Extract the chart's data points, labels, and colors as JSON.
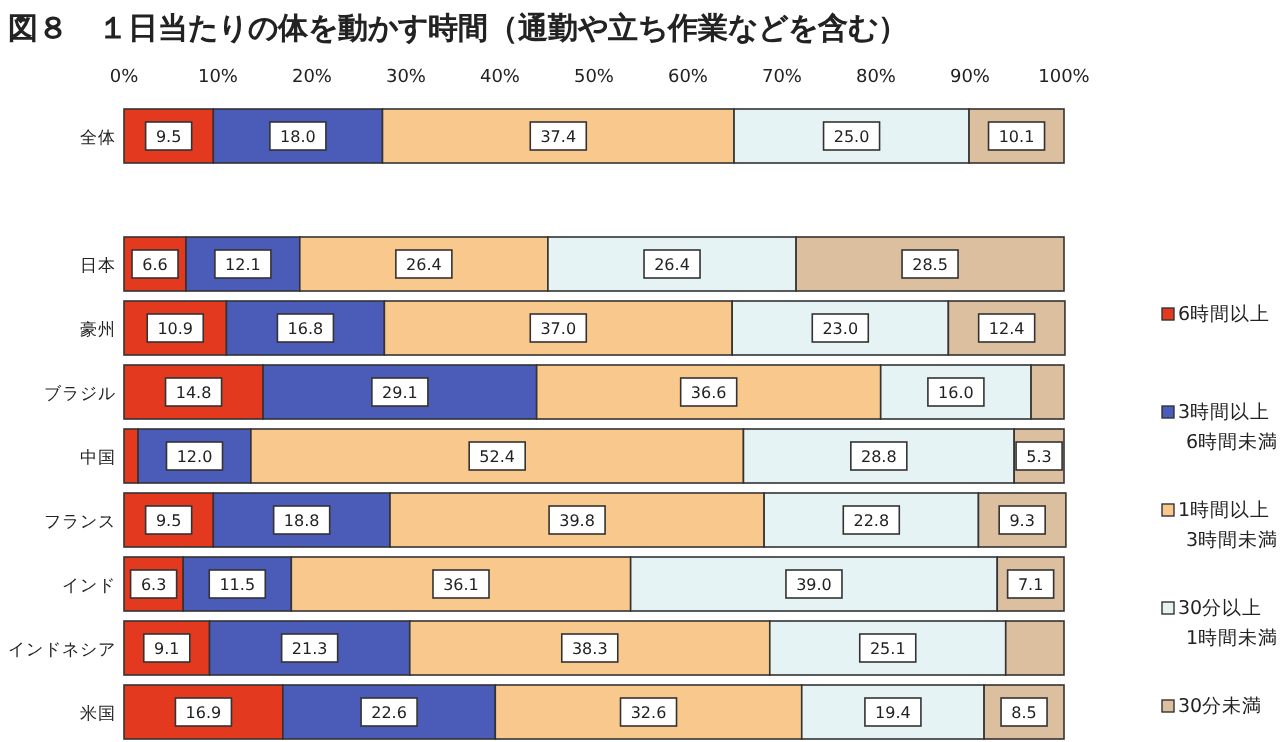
{
  "chart_data": {
    "type": "bar",
    "orientation": "horizontal",
    "stacked": true,
    "title": "図８　１日当たりの体を動かす時間（通勤や立ち作業などを含む）",
    "categories": [
      "全体",
      null,
      "日本",
      "豪州",
      "ブラジル",
      "中国",
      "フランス",
      "インド",
      "インドネシア",
      "米国"
    ],
    "xlim": [
      0,
      100
    ],
    "xticks": [
      {
        "value": 0,
        "label": "0%"
      },
      {
        "value": 10,
        "label": "10%"
      },
      {
        "value": 20,
        "label": "20%"
      },
      {
        "value": 30,
        "label": "30%"
      },
      {
        "value": 40,
        "label": "40%"
      },
      {
        "value": 50,
        "label": "50%"
      },
      {
        "value": 60,
        "label": "60%"
      },
      {
        "value": 70,
        "label": "70%"
      },
      {
        "value": 80,
        "label": "80%"
      },
      {
        "value": 90,
        "label": "90%"
      },
      {
        "value": 100,
        "label": "100%"
      }
    ],
    "legend": "right",
    "grid": false,
    "series": [
      {
        "name": "6時間以上",
        "color": "#e33a1f",
        "values": [
          9.5,
          null,
          6.6,
          10.9,
          14.8,
          1.5,
          9.5,
          6.3,
          9.1,
          16.9
        ],
        "value_labels": [
          "9.5",
          null,
          "6.6",
          "10.9",
          "14.8",
          null,
          "9.5",
          "6.3",
          "9.1",
          "16.9"
        ]
      },
      {
        "name": "3時間以上 6時間未満",
        "color": "#4a5cb8",
        "values": [
          18.0,
          null,
          12.1,
          16.8,
          29.1,
          12.0,
          18.8,
          11.5,
          21.3,
          22.6
        ],
        "value_labels": [
          "18.0",
          null,
          "12.1",
          "16.8",
          "29.1",
          "12.0",
          "18.8",
          "11.5",
          "21.3",
          "22.6"
        ]
      },
      {
        "name": "1時間以上 3時間未満",
        "color": "#f9c88c",
        "values": [
          37.4,
          null,
          26.4,
          37.0,
          36.6,
          52.4,
          39.8,
          36.1,
          38.3,
          32.6
        ],
        "value_labels": [
          "37.4",
          null,
          "26.4",
          "37.0",
          "36.6",
          "52.4",
          "39.8",
          "36.1",
          "38.3",
          "32.6"
        ]
      },
      {
        "name": "30分以上 1時間未満",
        "color": "#e6f3f5",
        "values": [
          25.0,
          null,
          26.4,
          23.0,
          16.0,
          28.8,
          22.8,
          39.0,
          25.1,
          19.4
        ],
        "value_labels": [
          "25.0",
          null,
          "26.4",
          "23.0",
          "16.0",
          "28.8",
          "22.8",
          "39.0",
          "25.1",
          "19.4"
        ]
      },
      {
        "name": "30分未満",
        "color": "#dcbf9e",
        "values": [
          10.1,
          null,
          28.5,
          12.4,
          3.5,
          5.3,
          9.3,
          7.1,
          6.2,
          8.5
        ],
        "value_labels": [
          "10.1",
          null,
          "28.5",
          "12.4",
          null,
          "5.3",
          "9.3",
          "7.1",
          null,
          "8.5"
        ]
      }
    ]
  }
}
